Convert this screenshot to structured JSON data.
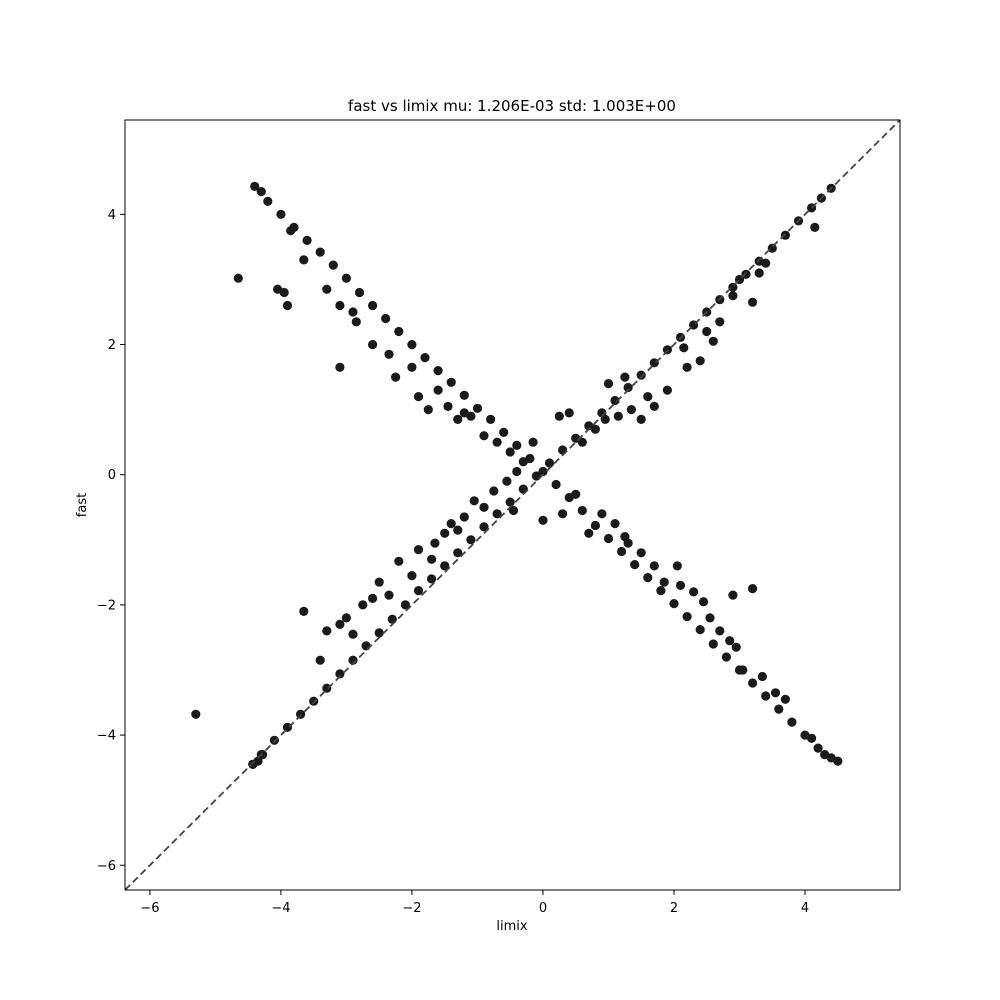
{
  "chart_data": {
    "type": "scatter",
    "title": "fast vs limix mu: 1.206E-03 std: 1.003E+00",
    "xlabel": "limix",
    "ylabel": "fast",
    "xlim": [
      -6.38,
      5.45
    ],
    "ylim": [
      -6.38,
      5.45
    ],
    "xticks": [
      -6,
      -4,
      -2,
      0,
      2,
      4
    ],
    "yticks": [
      -6,
      -4,
      -2,
      0,
      2,
      4
    ],
    "grid": false,
    "legend": "none",
    "marker_color": "#1a1a1a",
    "reference_line": {
      "style": "dashed",
      "color": "#444444",
      "from": [
        -6.38,
        -6.38
      ],
      "to": [
        5.45,
        5.45
      ]
    },
    "series": [
      {
        "points": [
          [
            -4.43,
            -4.45
          ],
          [
            -4.3,
            -4.3
          ],
          [
            -4.1,
            -4.08
          ],
          [
            -3.9,
            -3.88
          ],
          [
            -3.7,
            -3.68
          ],
          [
            -3.5,
            -3.48
          ],
          [
            -3.3,
            -3.28
          ],
          [
            -3.1,
            -3.06
          ],
          [
            -2.9,
            -2.85
          ],
          [
            -2.7,
            -2.63
          ],
          [
            -2.5,
            -2.43
          ],
          [
            -2.3,
            -2.22
          ],
          [
            -2.1,
            -2.0
          ],
          [
            -1.9,
            -1.78
          ],
          [
            -1.7,
            -1.6
          ],
          [
            -1.5,
            -1.4
          ],
          [
            -1.3,
            -1.2
          ],
          [
            -1.1,
            -1.0
          ],
          [
            -0.9,
            -0.8
          ],
          [
            -0.7,
            -0.6
          ],
          [
            -0.5,
            -0.42
          ],
          [
            -0.3,
            -0.22
          ],
          [
            -0.1,
            -0.02
          ],
          [
            0.1,
            0.18
          ],
          [
            0.3,
            0.38
          ],
          [
            0.5,
            0.56
          ],
          [
            0.7,
            0.75
          ],
          [
            0.9,
            0.95
          ],
          [
            1.1,
            1.14
          ],
          [
            1.3,
            1.34
          ],
          [
            1.5,
            1.53
          ],
          [
            1.7,
            1.72
          ],
          [
            1.9,
            1.92
          ],
          [
            2.1,
            2.11
          ],
          [
            2.3,
            2.3
          ],
          [
            2.5,
            2.5
          ],
          [
            2.7,
            2.69
          ],
          [
            2.9,
            2.88
          ],
          [
            3.1,
            3.08
          ],
          [
            3.3,
            3.28
          ],
          [
            3.5,
            3.48
          ],
          [
            3.7,
            3.68
          ],
          [
            3.9,
            3.9
          ],
          [
            4.1,
            4.1
          ],
          [
            4.25,
            4.25
          ],
          [
            4.4,
            4.4
          ],
          [
            -3.65,
            -2.1
          ],
          [
            -3.4,
            -2.85
          ],
          [
            -3.3,
            -2.4
          ],
          [
            -3.1,
            -2.3
          ],
          [
            -2.9,
            -2.45
          ],
          [
            -2.6,
            -1.9
          ],
          [
            -2.5,
            -1.65
          ],
          [
            -2.35,
            -1.85
          ],
          [
            -2.2,
            -1.33
          ],
          [
            -2.0,
            -1.55
          ],
          [
            -1.9,
            -1.15
          ],
          [
            -1.65,
            -1.05
          ],
          [
            -1.5,
            -0.9
          ],
          [
            -1.4,
            -0.75
          ],
          [
            -1.2,
            -0.65
          ],
          [
            -1.05,
            -0.4
          ],
          [
            -0.9,
            -0.5
          ],
          [
            -0.75,
            -0.25
          ],
          [
            -0.55,
            -0.1
          ],
          [
            -0.4,
            0.05
          ],
          [
            -0.45,
            -0.55
          ],
          [
            0.0,
            -0.7
          ],
          [
            0.25,
            0.9
          ],
          [
            0.4,
            0.95
          ],
          [
            0.6,
            0.5
          ],
          [
            0.8,
            0.7
          ],
          [
            0.95,
            0.85
          ],
          [
            1.0,
            1.4
          ],
          [
            1.15,
            0.9
          ],
          [
            1.25,
            1.5
          ],
          [
            1.5,
            0.85
          ],
          [
            1.7,
            1.05
          ],
          [
            1.9,
            1.3
          ],
          [
            2.2,
            1.65
          ],
          [
            2.15,
            1.95
          ],
          [
            2.4,
            1.75
          ],
          [
            2.6,
            2.05
          ],
          [
            2.7,
            2.35
          ],
          [
            2.9,
            2.75
          ],
          [
            3.0,
            3.0
          ],
          [
            3.2,
            2.65
          ],
          [
            3.4,
            3.25
          ],
          [
            4.15,
            3.8
          ],
          [
            -4.35,
            -4.4
          ],
          [
            -4.28,
            -4.3
          ],
          [
            -3.0,
            -2.2
          ],
          [
            -2.75,
            -2.0
          ],
          [
            -1.7,
            -1.3
          ],
          [
            -1.3,
            -0.85
          ],
          [
            1.35,
            1.0
          ],
          [
            1.6,
            1.2
          ],
          [
            2.5,
            2.2
          ],
          [
            3.3,
            3.1
          ]
        ]
      },
      {
        "points": [
          [
            -4.4,
            4.43
          ],
          [
            -4.2,
            4.2
          ],
          [
            -4.0,
            4.0
          ],
          [
            -3.8,
            3.8
          ],
          [
            -3.6,
            3.6
          ],
          [
            -3.4,
            3.42
          ],
          [
            -3.2,
            3.22
          ],
          [
            -3.0,
            3.02
          ],
          [
            -2.8,
            2.8
          ],
          [
            -2.6,
            2.6
          ],
          [
            -2.4,
            2.4
          ],
          [
            -2.2,
            2.2
          ],
          [
            -2.0,
            2.0
          ],
          [
            -1.8,
            1.8
          ],
          [
            -1.6,
            1.6
          ],
          [
            -1.4,
            1.42
          ],
          [
            -1.2,
            1.22
          ],
          [
            -1.0,
            1.02
          ],
          [
            -0.8,
            0.85
          ],
          [
            -0.6,
            0.65
          ],
          [
            -0.4,
            0.45
          ],
          [
            -0.2,
            0.25
          ],
          [
            0.0,
            0.05
          ],
          [
            0.2,
            -0.15
          ],
          [
            0.4,
            -0.35
          ],
          [
            0.6,
            -0.55
          ],
          [
            0.8,
            -0.78
          ],
          [
            1.0,
            -0.98
          ],
          [
            1.2,
            -1.18
          ],
          [
            1.4,
            -1.38
          ],
          [
            1.6,
            -1.58
          ],
          [
            1.8,
            -1.78
          ],
          [
            2.0,
            -1.98
          ],
          [
            2.2,
            -2.18
          ],
          [
            2.4,
            -2.38
          ],
          [
            2.6,
            -2.6
          ],
          [
            2.8,
            -2.8
          ],
          [
            3.0,
            -3.0
          ],
          [
            3.2,
            -3.2
          ],
          [
            3.4,
            -3.4
          ],
          [
            3.6,
            -3.6
          ],
          [
            3.8,
            -3.8
          ],
          [
            4.0,
            -4.0
          ],
          [
            4.2,
            -4.2
          ],
          [
            4.4,
            -4.35
          ],
          [
            4.5,
            -4.4
          ],
          [
            -4.65,
            3.02
          ],
          [
            -4.05,
            2.85
          ],
          [
            -3.95,
            2.8
          ],
          [
            -3.9,
            2.6
          ],
          [
            -3.65,
            3.3
          ],
          [
            -3.3,
            2.85
          ],
          [
            -3.1,
            2.6
          ],
          [
            -3.1,
            1.65
          ],
          [
            -2.85,
            2.35
          ],
          [
            -2.6,
            2.0
          ],
          [
            -2.35,
            1.85
          ],
          [
            -2.25,
            1.5
          ],
          [
            -2.0,
            1.65
          ],
          [
            -1.9,
            1.2
          ],
          [
            -1.75,
            1.0
          ],
          [
            -1.6,
            1.3
          ],
          [
            -1.45,
            1.05
          ],
          [
            -1.3,
            0.85
          ],
          [
            -1.1,
            0.9
          ],
          [
            -0.9,
            0.6
          ],
          [
            -0.7,
            0.5
          ],
          [
            -0.5,
            0.35
          ],
          [
            -0.3,
            0.2
          ],
          [
            -0.15,
            0.5
          ],
          [
            0.3,
            -0.6
          ],
          [
            0.5,
            -0.3
          ],
          [
            0.7,
            -0.9
          ],
          [
            0.9,
            -0.6
          ],
          [
            1.1,
            -0.75
          ],
          [
            1.3,
            -1.05
          ],
          [
            1.5,
            -1.2
          ],
          [
            1.7,
            -1.4
          ],
          [
            1.85,
            -1.65
          ],
          [
            2.05,
            -1.4
          ],
          [
            2.3,
            -1.8
          ],
          [
            2.45,
            -1.95
          ],
          [
            2.55,
            -2.2
          ],
          [
            2.7,
            -2.4
          ],
          [
            2.85,
            -2.55
          ],
          [
            2.9,
            -1.85
          ],
          [
            2.95,
            -2.65
          ],
          [
            3.05,
            -3.0
          ],
          [
            3.2,
            -1.75
          ],
          [
            3.35,
            -3.1
          ],
          [
            3.55,
            -3.35
          ],
          [
            3.7,
            -3.45
          ],
          [
            4.3,
            -4.3
          ],
          [
            -4.3,
            4.35
          ],
          [
            -3.85,
            3.75
          ],
          [
            -2.9,
            2.5
          ],
          [
            -1.2,
            0.95
          ],
          [
            1.25,
            -0.95
          ],
          [
            2.1,
            -1.7
          ],
          [
            4.1,
            -4.05
          ]
        ]
      },
      {
        "points": [
          [
            -5.3,
            -3.68
          ]
        ]
      }
    ]
  }
}
